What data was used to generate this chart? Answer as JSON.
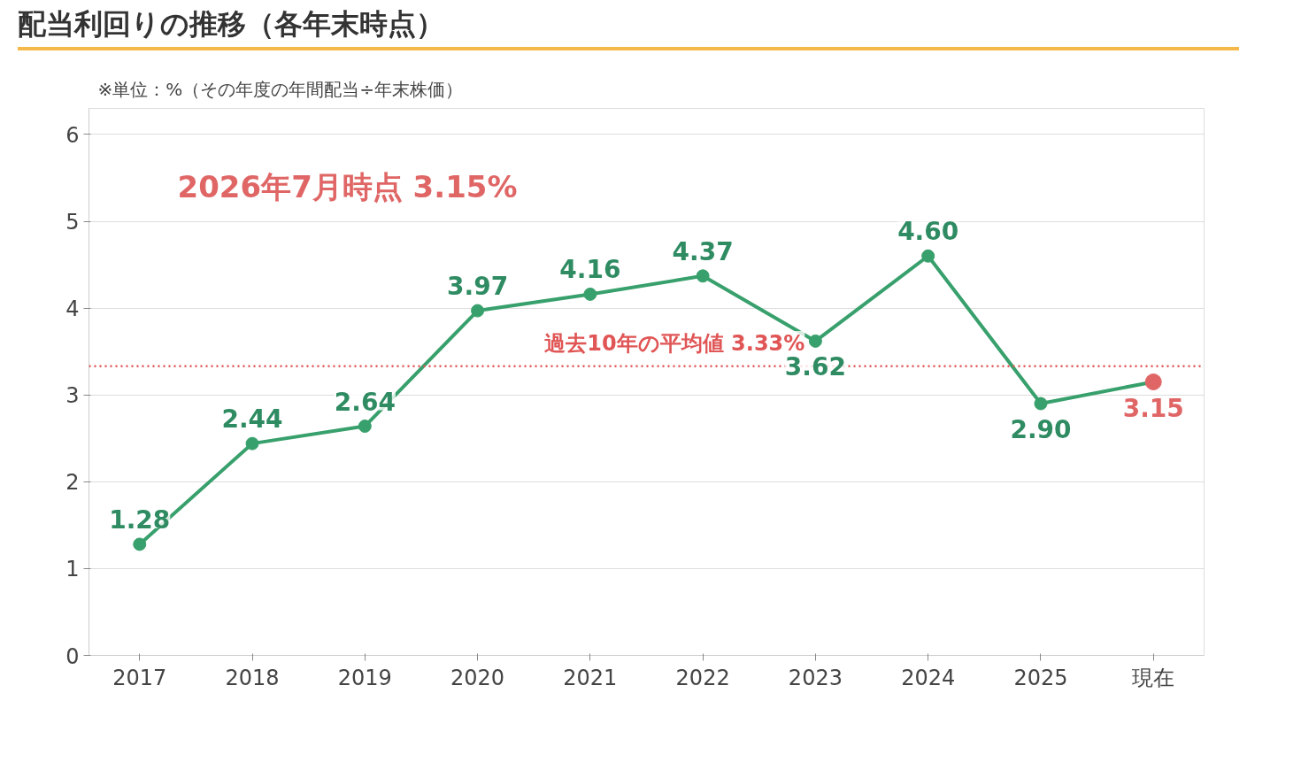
{
  "chart_data": {
    "type": "line",
    "title": "配当利回りの推移（各年末時点）",
    "categories": [
      "2017",
      "2018",
      "2019",
      "2020",
      "2021",
      "2022",
      "2023",
      "2024",
      "2025",
      "現在"
    ],
    "series": [
      {
        "color": "#38a06c",
        "colors": [
          "#38a06c",
          "#38a06c",
          "#38a06c",
          "#38a06c",
          "#38a06c",
          "#38a06c",
          "#38a06c",
          "#38a06c",
          "#38a06c",
          "#e06666"
        ],
        "values": [
          1.28,
          2.44,
          2.64,
          3.97,
          4.16,
          4.37,
          3.62,
          4.6,
          2.9,
          3.15
        ]
      }
    ],
    "value_labels": [
      "1.28",
      "2.44",
      "2.64",
      "3.97",
      "4.16",
      "4.37",
      "3.62",
      "4.60",
      "2.90",
      "3.15"
    ],
    "ylim": [
      0,
      6.3
    ],
    "yticks": [
      0,
      1,
      2,
      3,
      4,
      5,
      6
    ],
    "grid": "y",
    "marker": "circle",
    "line_style": "solid",
    "ref_lines": [
      {
        "axis": "y",
        "value": 3.33,
        "label": "過去10年の平均値 3.33%",
        "color": "#e05555",
        "line_style": "dotted"
      }
    ],
    "annotations": [
      "※単位：%（その年度の年間配当÷年末株価）",
      "2026年7月時点  3.15%"
    ]
  }
}
